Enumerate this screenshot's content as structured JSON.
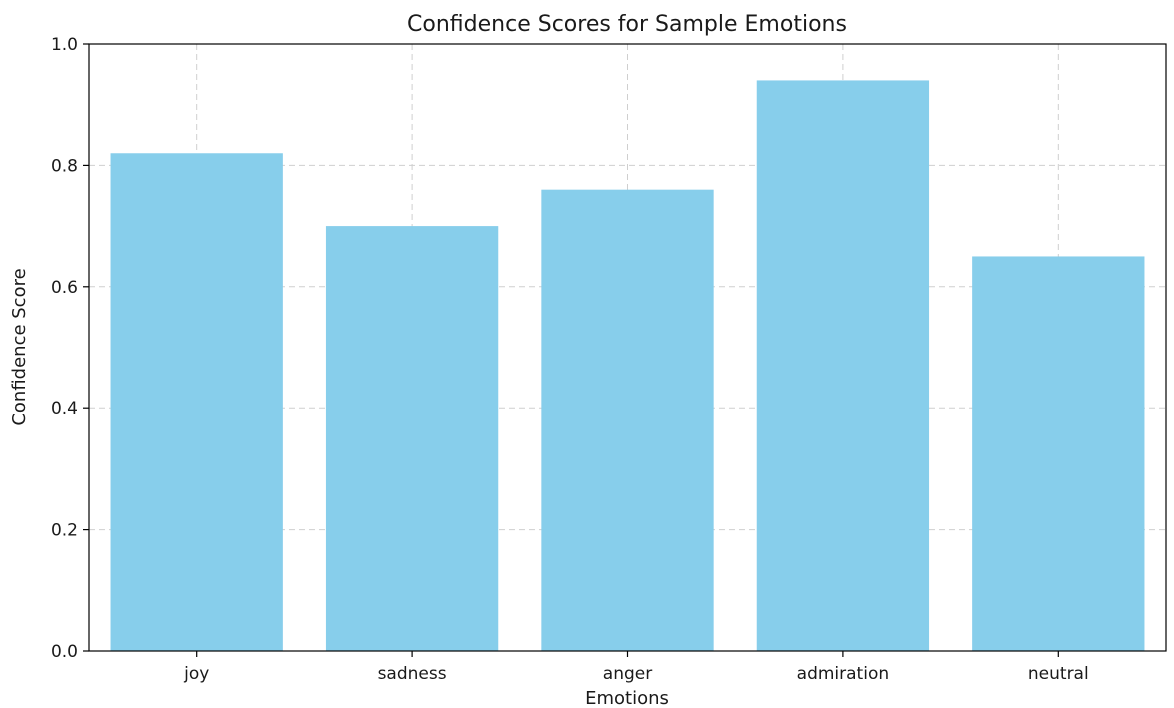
{
  "chart_data": {
    "type": "bar",
    "title": "Confidence Scores for Sample Emotions",
    "xlabel": "Emotions",
    "ylabel": "Confidence Score",
    "categories": [
      "joy",
      "sadness",
      "anger",
      "admiration",
      "neutral"
    ],
    "values": [
      0.82,
      0.7,
      0.76,
      0.94,
      0.65
    ],
    "ylim": [
      0.0,
      1.0
    ],
    "yticks": [
      "0.0",
      "0.2",
      "0.4",
      "0.6",
      "0.8",
      "1.0"
    ],
    "grid": true,
    "bar_color": "#87CEEB"
  }
}
